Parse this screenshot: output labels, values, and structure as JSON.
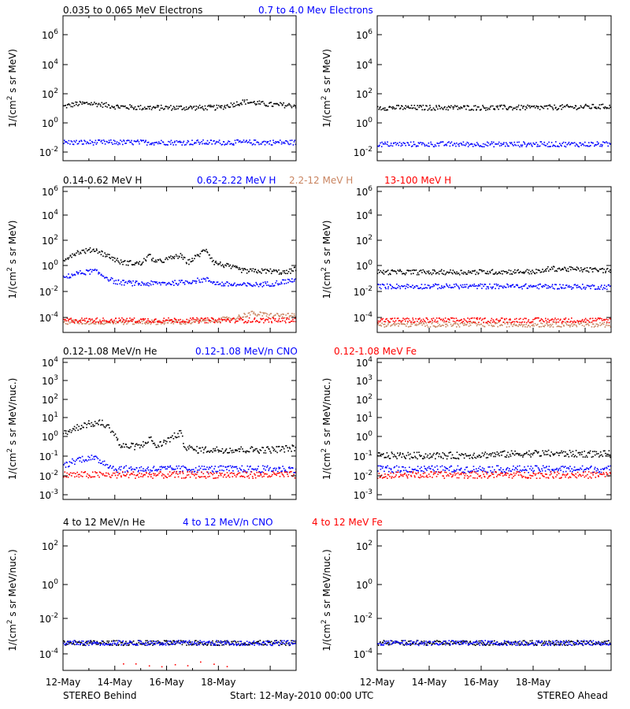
{
  "footer": {
    "left": "STEREO Behind",
    "center": "Start: 12-May-2010 00:00 UTC",
    "right": "STEREO Ahead"
  },
  "x_tick_labels": [
    "12-May",
    "14-May",
    "16-May",
    "18-May"
  ],
  "colors": {
    "black": "#000000",
    "blue": "#0000ff",
    "tan": "#c98460",
    "red": "#ff0000"
  },
  "rows": [
    {
      "title_segments": [
        {
          "text": "0.035 to 0.065 MeV Electrons",
          "color": "#000000"
        },
        {
          "text": "0.7 to 4.0 Mev Electrons",
          "color": "#0000ff"
        }
      ],
      "ylabel_base": "1/(cm",
      "ylabel_sup": "2",
      "ylabel_rest": " s sr MeV)",
      "yticks": [
        {
          "base": "10",
          "exp": "6"
        },
        {
          "base": "10",
          "exp": "4"
        },
        {
          "base": "10",
          "exp": "2"
        },
        {
          "base": "10",
          "exp": "0"
        },
        {
          "base": "10",
          "exp": "-2"
        }
      ]
    },
    {
      "title_segments": [
        {
          "text": "0.14-0.62 MeV H",
          "color": "#000000"
        },
        {
          "text": "0.62-2.22 MeV H",
          "color": "#0000ff"
        },
        {
          "text": "2.2-12 MeV H",
          "color": "#c98460"
        },
        {
          "text": "13-100 MeV H",
          "color": "#ff0000"
        }
      ],
      "ylabel_base": "1/(cm",
      "ylabel_sup": "2",
      "ylabel_rest": " s sr MeV)",
      "yticks": [
        {
          "base": "10",
          "exp": "6"
        },
        {
          "base": "10",
          "exp": "4"
        },
        {
          "base": "10",
          "exp": "2"
        },
        {
          "base": "10",
          "exp": "0"
        },
        {
          "base": "10",
          "exp": "-2"
        },
        {
          "base": "10",
          "exp": "-4"
        }
      ]
    },
    {
      "title_segments": [
        {
          "text": "0.12-1.08 MeV/n He",
          "color": "#000000"
        },
        {
          "text": "0.12-1.08 MeV/n CNO",
          "color": "#0000ff"
        },
        {
          "text": "0.12-1.08 MeV Fe",
          "color": "#ff0000"
        }
      ],
      "ylabel_base": "1/(cm",
      "ylabel_sup": "2",
      "ylabel_rest": " s sr MeV/nuc.)",
      "yticks": [
        {
          "base": "10",
          "exp": "4"
        },
        {
          "base": "10",
          "exp": "3"
        },
        {
          "base": "10",
          "exp": "2"
        },
        {
          "base": "10",
          "exp": "1"
        },
        {
          "base": "10",
          "exp": "0"
        },
        {
          "base": "10",
          "exp": "-1"
        },
        {
          "base": "10",
          "exp": "-2"
        },
        {
          "base": "10",
          "exp": "-3"
        }
      ]
    },
    {
      "title_segments": [
        {
          "text": "4 to 12 MeV/n He",
          "color": "#000000"
        },
        {
          "text": "4 to 12 MeV/n CNO",
          "color": "#0000ff"
        },
        {
          "text": "4 to 12 MeV Fe",
          "color": "#ff0000"
        }
      ],
      "ylabel_base": "1/(cm",
      "ylabel_sup": "2",
      "ylabel_rest": " s sr MeV/nuc.)",
      "yticks": [
        {
          "base": "10",
          "exp": "2"
        },
        {
          "base": "10",
          "exp": "0"
        },
        {
          "base": "10",
          "exp": "-2"
        },
        {
          "base": "10",
          "exp": "-4"
        }
      ]
    }
  ],
  "chart_data": [
    {
      "type": "scatter",
      "spacecraft": "STEREO Behind",
      "row": 0,
      "col": 0,
      "yscale": "log",
      "ylim": [
        0.001,
        10000000
      ],
      "x_range_days": [
        0,
        9
      ],
      "series": [
        {
          "name": "0.035 to 0.065 MeV Electrons",
          "color": "#000000",
          "points": [
            [
              0,
              6
            ],
            [
              0.5,
              9
            ],
            [
              1,
              10
            ],
            [
              1.5,
              8
            ],
            [
              2,
              6
            ],
            [
              3,
              5
            ],
            [
              4,
              5
            ],
            [
              5,
              5
            ],
            [
              6,
              5
            ],
            [
              7,
              13
            ],
            [
              8,
              8
            ],
            [
              9,
              7
            ]
          ]
        },
        {
          "name": "0.7 to 4.0 Mev Electrons",
          "color": "#0000ff",
          "points": [
            [
              0,
              0.02
            ],
            [
              2,
              0.02
            ],
            [
              4,
              0.02
            ],
            [
              6,
              0.02
            ],
            [
              8,
              0.02
            ],
            [
              9,
              0.02
            ]
          ]
        }
      ]
    },
    {
      "type": "scatter",
      "spacecraft": "STEREO Ahead",
      "row": 0,
      "col": 1,
      "yscale": "log",
      "ylim": [
        0.001,
        10000000
      ],
      "x_range_days": [
        0,
        9
      ],
      "series": [
        {
          "name": "0.035 to 0.065 MeV Electrons",
          "color": "#000000",
          "points": [
            [
              0,
              5
            ],
            [
              3,
              5
            ],
            [
              6,
              5
            ],
            [
              9,
              6
            ]
          ]
        },
        {
          "name": "0.7 to 4.0 Mev Electrons",
          "color": "#0000ff",
          "points": [
            [
              0,
              0.015
            ],
            [
              3,
              0.015
            ],
            [
              6,
              0.015
            ],
            [
              9,
              0.015
            ]
          ]
        }
      ]
    },
    {
      "type": "scatter",
      "spacecraft": "STEREO Behind",
      "row": 1,
      "col": 0,
      "yscale": "log",
      "ylim": [
        5e-05,
        1000000
      ],
      "x_range_days": [
        0,
        9
      ],
      "series": [
        {
          "name": "0.14-0.62 MeV H",
          "color": "#000000",
          "points": [
            [
              0,
              8
            ],
            [
              0.5,
              25
            ],
            [
              1.2,
              40
            ],
            [
              1.8,
              12
            ],
            [
              2.2,
              5
            ],
            [
              3,
              4
            ],
            [
              3.3,
              15
            ],
            [
              3.6,
              5
            ],
            [
              4.5,
              15
            ],
            [
              4.8,
              5
            ],
            [
              5.2,
              15
            ],
            [
              5.5,
              45
            ],
            [
              5.8,
              5
            ],
            [
              7,
              1.2
            ],
            [
              8,
              1.2
            ],
            [
              8.6,
              0.9
            ],
            [
              9,
              2
            ]
          ]
        },
        {
          "name": "0.62-2.22 MeV H",
          "color": "#0000ff",
          "points": [
            [
              0,
              0.4
            ],
            [
              0.5,
              0.8
            ],
            [
              1.2,
              1.2
            ],
            [
              2,
              0.2
            ],
            [
              3,
              0.15
            ],
            [
              4.5,
              0.18
            ],
            [
              5.5,
              0.3
            ],
            [
              6,
              0.15
            ],
            [
              7,
              0.12
            ],
            [
              8,
              0.15
            ],
            [
              9,
              0.3
            ]
          ]
        },
        {
          "name": "2.2-12 MeV H",
          "color": "#c98460",
          "points": [
            [
              0,
              0.0003
            ],
            [
              5,
              0.0003
            ],
            [
              6.5,
              0.0005
            ],
            [
              7.2,
              0.0012
            ],
            [
              8,
              0.0009
            ],
            [
              9,
              0.0008
            ]
          ]
        },
        {
          "name": "13-100 MeV H",
          "color": "#ff0000",
          "points": [
            [
              0,
              0.0004
            ],
            [
              3,
              0.0004
            ],
            [
              6,
              0.0004
            ],
            [
              9,
              0.0004
            ]
          ]
        }
      ]
    },
    {
      "type": "scatter",
      "spacecraft": "STEREO Ahead",
      "row": 1,
      "col": 1,
      "yscale": "log",
      "ylim": [
        5e-05,
        1000000
      ],
      "x_range_days": [
        0,
        9
      ],
      "series": [
        {
          "name": "0.14-0.62 MeV H",
          "color": "#000000",
          "points": [
            [
              0,
              1
            ],
            [
              3,
              1
            ],
            [
              6.3,
              1.1
            ],
            [
              6.6,
              1.8
            ],
            [
              9,
              1.3
            ]
          ]
        },
        {
          "name": "0.62-2.22 MeV H",
          "color": "#0000ff",
          "points": [
            [
              0,
              0.1
            ],
            [
              3,
              0.1
            ],
            [
              6,
              0.1
            ],
            [
              9,
              0.09
            ]
          ]
        },
        {
          "name": "2.2-12 MeV H",
          "color": "#c98460",
          "points": [
            [
              0,
              0.0002
            ],
            [
              9,
              0.0002
            ]
          ]
        },
        {
          "name": "13-100 MeV H",
          "color": "#ff0000",
          "points": [
            [
              0,
              0.0004
            ],
            [
              3,
              0.0004
            ],
            [
              6,
              0.0004
            ],
            [
              9,
              0.0004
            ]
          ]
        }
      ]
    },
    {
      "type": "scatter",
      "spacecraft": "STEREO Behind",
      "row": 2,
      "col": 0,
      "yscale": "log",
      "ylim": [
        0.0005,
        10000
      ],
      "x_range_days": [
        0,
        9
      ],
      "series": [
        {
          "name": "0.12-1.08 MeV/n He",
          "color": "#000000",
          "points": [
            [
              0,
              1.5
            ],
            [
              0.8,
              4
            ],
            [
              1.5,
              5
            ],
            [
              1.9,
              2
            ],
            [
              2.2,
              0.3
            ],
            [
              3,
              0.3
            ],
            [
              3.3,
              0.8
            ],
            [
              3.6,
              0.3
            ],
            [
              4.5,
              1.5
            ],
            [
              4.7,
              0.3
            ],
            [
              5,
              0.2
            ],
            [
              6,
              0.2
            ],
            [
              7,
              0.2
            ],
            [
              8,
              0.2
            ],
            [
              9,
              0.25
            ]
          ]
        },
        {
          "name": "0.12-1.08 MeV/n CNO",
          "color": "#0000ff",
          "points": [
            [
              0,
              0.03
            ],
            [
              0.5,
              0.06
            ],
            [
              1,
              0.08
            ],
            [
              1.5,
              0.05
            ],
            [
              2,
              0.02
            ],
            [
              4,
              0.02
            ],
            [
              6,
              0.02
            ],
            [
              9,
              0.02
            ]
          ]
        },
        {
          "name": "0.12-1.08 MeV Fe",
          "color": "#ff0000",
          "points": [
            [
              0,
              0.01
            ],
            [
              3,
              0.01
            ],
            [
              6,
              0.01
            ],
            [
              9,
              0.01
            ]
          ]
        }
      ]
    },
    {
      "type": "scatter",
      "spacecraft": "STEREO Ahead",
      "row": 2,
      "col": 1,
      "yscale": "log",
      "ylim": [
        0.0005,
        10000
      ],
      "x_range_days": [
        0,
        9
      ],
      "series": [
        {
          "name": "0.12-1.08 MeV/n He",
          "color": "#000000",
          "points": [
            [
              0,
              0.1
            ],
            [
              3,
              0.1
            ],
            [
              6,
              0.13
            ],
            [
              9,
              0.12
            ]
          ]
        },
        {
          "name": "0.12-1.08 MeV/n CNO",
          "color": "#0000ff",
          "points": [
            [
              0,
              0.02
            ],
            [
              4,
              0.02
            ],
            [
              9,
              0.02
            ]
          ]
        },
        {
          "name": "0.12-1.08 MeV Fe",
          "color": "#ff0000",
          "points": [
            [
              0,
              0.01
            ],
            [
              3,
              0.01
            ],
            [
              6,
              0.01
            ],
            [
              9,
              0.01
            ]
          ]
        }
      ]
    },
    {
      "type": "scatter",
      "spacecraft": "STEREO Behind",
      "row": 3,
      "col": 0,
      "yscale": "log",
      "ylim": [
        1e-06,
        10000
      ],
      "x_range_days": [
        0,
        9
      ],
      "series": [
        {
          "name": "4 to 12 MeV/n He",
          "color": "#000000",
          "points": [
            [
              0,
              0.0001
            ],
            [
              3,
              0.0001
            ],
            [
              6,
              0.0001
            ],
            [
              9,
              0.0001
            ]
          ]
        },
        {
          "name": "4 to 12 MeV/n CNO",
          "color": "#0000ff",
          "points": [
            [
              0,
              0.0001
            ],
            [
              4,
              0.0001
            ],
            [
              9,
              0.0001
            ]
          ]
        },
        {
          "name": "4 to 12 MeV Fe",
          "color": "#ff0000",
          "points": [
            [
              2.3,
              3e-06
            ],
            [
              6.7,
              3e-06
            ]
          ]
        }
      ]
    },
    {
      "type": "scatter",
      "spacecraft": "STEREO Ahead",
      "row": 3,
      "col": 1,
      "yscale": "log",
      "ylim": [
        1e-06,
        10000
      ],
      "x_range_days": [
        0,
        9
      ],
      "series": [
        {
          "name": "4 to 12 MeV/n He",
          "color": "#000000",
          "points": [
            [
              0,
              0.0001
            ],
            [
              3,
              0.0001
            ],
            [
              6,
              0.0001
            ],
            [
              9,
              0.0001
            ]
          ]
        },
        {
          "name": "4 to 12 MeV/n CNO",
          "color": "#0000ff",
          "points": [
            [
              0,
              0.0001
            ],
            [
              4,
              0.0001
            ],
            [
              9,
              0.0001
            ]
          ]
        },
        {
          "name": "4 to 12 MeV Fe",
          "color": "#ff0000",
          "points": []
        }
      ]
    }
  ]
}
